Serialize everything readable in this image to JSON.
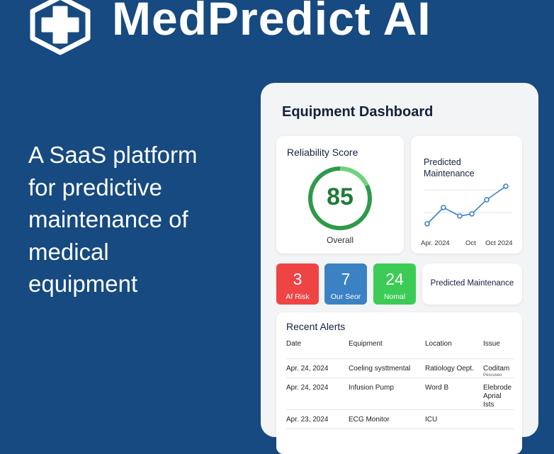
{
  "brand": {
    "title": "MedPredict AI"
  },
  "tagline": {
    "lines": [
      "A SaaS platform",
      "for predictive",
      "maintenance of",
      "medical",
      "equipment"
    ]
  },
  "dashboard": {
    "title": "Equipment Dashboard",
    "reliability": {
      "title": "Reliability Score",
      "score": 85,
      "caption": "Overall"
    },
    "predicted": {
      "title_lines": [
        "Predicted",
        "Maintenance"
      ],
      "x_labels": [
        "Apr. 2024",
        "Oct",
        "Oct 2024"
      ]
    },
    "stats": [
      {
        "value": 3,
        "label": "Af Risk",
        "color": "#ef4444"
      },
      {
        "value": 7,
        "label": "Our Seor",
        "color": "#3b82c4"
      },
      {
        "value": 24,
        "label": "Nomal",
        "color": "#3ccc55"
      }
    ],
    "predicted_button": "Predicted Maintenance",
    "alerts": {
      "title": "Recent Alerts",
      "columns": [
        "Date",
        "Equipment",
        "Location",
        "Issue"
      ],
      "rows": [
        {
          "date": "Apr. 24, 2024",
          "equipment": "Coeling systtmental",
          "location": "Ratiology Oept.",
          "issue": "Coditam",
          "note": "Pescuseo"
        },
        {
          "date": "Apr. 24, 2024",
          "equipment": "Infusion Pump",
          "location": "Word B",
          "issue": "Elebrode Aprial Ists"
        },
        {
          "date": "Apr. 23, 2024",
          "equipment": "ECG Monitor",
          "location": "ICU"
        }
      ]
    }
  }
}
